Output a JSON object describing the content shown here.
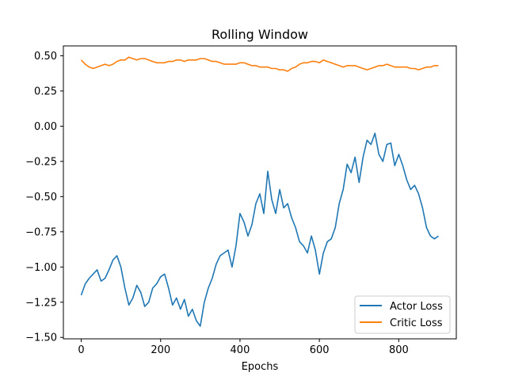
{
  "chart_data": {
    "type": "line",
    "title": "Rolling Window",
    "xlabel": "Epochs",
    "ylabel": "",
    "xlim": [
      -45,
      945
    ],
    "ylim": [
      -1.51,
      0.57
    ],
    "xticks": [
      0,
      200,
      400,
      600,
      800
    ],
    "xtick_labels": [
      "0",
      "200",
      "400",
      "600",
      "800"
    ],
    "yticks": [
      -1.5,
      -1.25,
      -1.0,
      -0.75,
      -0.5,
      -0.25,
      0.0,
      0.25,
      0.5
    ],
    "ytick_labels": [
      "−1.50",
      "−1.25",
      "−1.00",
      "−0.75",
      "−0.50",
      "−0.25",
      "0.00",
      "0.25",
      "0.50"
    ],
    "grid": false,
    "legend_position": "lower-right",
    "series": [
      {
        "name": "Actor Loss",
        "color": "#1f77b4",
        "x": [
          0,
          10,
          20,
          30,
          40,
          50,
          60,
          70,
          80,
          90,
          100,
          110,
          120,
          130,
          140,
          150,
          160,
          170,
          180,
          190,
          200,
          210,
          220,
          230,
          240,
          250,
          260,
          270,
          280,
          290,
          300,
          310,
          320,
          330,
          340,
          350,
          360,
          370,
          380,
          390,
          400,
          410,
          420,
          430,
          440,
          450,
          460,
          470,
          480,
          490,
          500,
          510,
          520,
          530,
          540,
          550,
          560,
          570,
          580,
          590,
          600,
          610,
          620,
          630,
          640,
          650,
          660,
          670,
          680,
          690,
          700,
          710,
          720,
          730,
          740,
          750,
          760,
          770,
          780,
          790,
          800,
          810,
          820,
          830,
          840,
          850,
          860,
          870,
          880,
          890,
          900
        ],
        "values": [
          -1.2,
          -1.12,
          -1.08,
          -1.05,
          -1.02,
          -1.1,
          -1.08,
          -1.02,
          -0.95,
          -0.92,
          -1.0,
          -1.15,
          -1.27,
          -1.22,
          -1.13,
          -1.18,
          -1.28,
          -1.25,
          -1.15,
          -1.12,
          -1.07,
          -1.05,
          -1.15,
          -1.27,
          -1.22,
          -1.3,
          -1.23,
          -1.35,
          -1.3,
          -1.38,
          -1.42,
          -1.25,
          -1.15,
          -1.08,
          -0.98,
          -0.92,
          -0.9,
          -0.88,
          -1.0,
          -0.85,
          -0.62,
          -0.68,
          -0.78,
          -0.7,
          -0.55,
          -0.48,
          -0.62,
          -0.32,
          -0.52,
          -0.62,
          -0.45,
          -0.58,
          -0.55,
          -0.65,
          -0.72,
          -0.82,
          -0.85,
          -0.9,
          -0.78,
          -0.88,
          -1.05,
          -0.9,
          -0.82,
          -0.8,
          -0.72,
          -0.55,
          -0.45,
          -0.27,
          -0.33,
          -0.22,
          -0.4,
          -0.22,
          -0.1,
          -0.13,
          -0.05,
          -0.2,
          -0.25,
          -0.13,
          -0.12,
          -0.28,
          -0.2,
          -0.28,
          -0.38,
          -0.45,
          -0.42,
          -0.48,
          -0.58,
          -0.72,
          -0.78,
          -0.8,
          -0.78
        ]
      },
      {
        "name": "Critic Loss",
        "color": "#ff7f0e",
        "x": [
          0,
          10,
          20,
          30,
          40,
          50,
          60,
          70,
          80,
          90,
          100,
          110,
          120,
          130,
          140,
          150,
          160,
          170,
          180,
          190,
          200,
          210,
          220,
          230,
          240,
          250,
          260,
          270,
          280,
          290,
          300,
          310,
          320,
          330,
          340,
          350,
          360,
          370,
          380,
          390,
          400,
          410,
          420,
          430,
          440,
          450,
          460,
          470,
          480,
          490,
          500,
          510,
          520,
          530,
          540,
          550,
          560,
          570,
          580,
          590,
          600,
          610,
          620,
          630,
          640,
          650,
          660,
          670,
          680,
          690,
          700,
          710,
          720,
          730,
          740,
          750,
          760,
          770,
          780,
          790,
          800,
          810,
          820,
          830,
          840,
          850,
          860,
          870,
          880,
          890,
          900
        ],
        "values": [
          0.47,
          0.44,
          0.42,
          0.41,
          0.42,
          0.43,
          0.44,
          0.43,
          0.44,
          0.46,
          0.47,
          0.47,
          0.49,
          0.48,
          0.47,
          0.48,
          0.48,
          0.47,
          0.46,
          0.45,
          0.45,
          0.45,
          0.46,
          0.46,
          0.47,
          0.47,
          0.46,
          0.47,
          0.47,
          0.47,
          0.48,
          0.48,
          0.47,
          0.46,
          0.46,
          0.45,
          0.44,
          0.44,
          0.44,
          0.44,
          0.45,
          0.45,
          0.44,
          0.43,
          0.43,
          0.42,
          0.42,
          0.42,
          0.41,
          0.41,
          0.4,
          0.4,
          0.39,
          0.41,
          0.42,
          0.44,
          0.45,
          0.45,
          0.46,
          0.46,
          0.45,
          0.47,
          0.46,
          0.45,
          0.44,
          0.43,
          0.42,
          0.43,
          0.43,
          0.43,
          0.42,
          0.41,
          0.4,
          0.41,
          0.42,
          0.43,
          0.43,
          0.44,
          0.43,
          0.42,
          0.42,
          0.42,
          0.42,
          0.41,
          0.41,
          0.4,
          0.41,
          0.42,
          0.42,
          0.43,
          0.43
        ]
      }
    ]
  }
}
